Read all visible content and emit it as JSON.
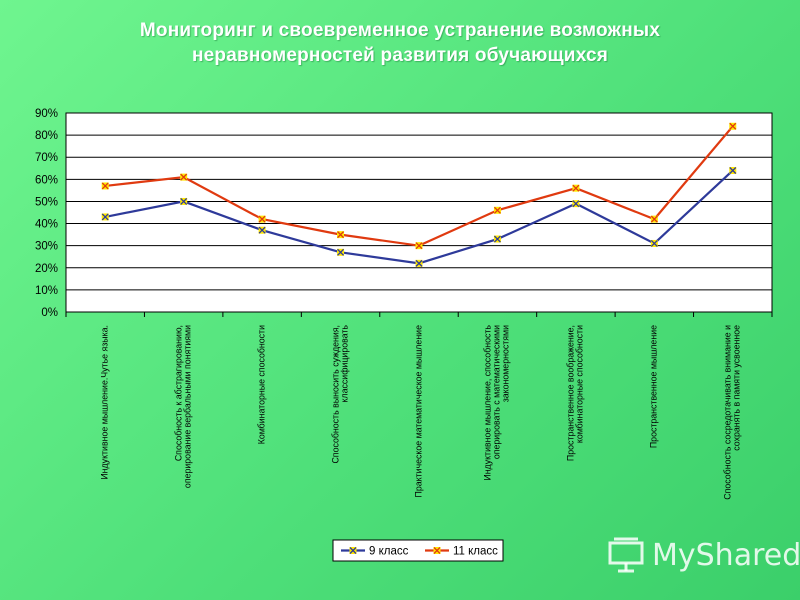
{
  "title": {
    "line1": "Мониторинг и своевременное устранение возможных",
    "line2": "неравномерностей развития обучающихся"
  },
  "chart_data": {
    "type": "line",
    "categories": [
      [
        "Индуктивное мышление.Чутье языка."
      ],
      [
        "Способность к абстрагированию,",
        "оперирование вербальными понятиями"
      ],
      [
        "Комбинаторные способности"
      ],
      [
        "Способность выносить суждения,",
        "классифицировать"
      ],
      [
        "Практическое математическое мышление"
      ],
      [
        "Индуктивное мышление, способность",
        "оперировать с математическими",
        "закономерностями"
      ],
      [
        "Пространственное воображение,",
        "комбинаторные способности"
      ],
      [
        "Пространственное мышление"
      ],
      [
        "Способность сосредотачивать внимание и",
        "сохранять в памяти усвоенное"
      ]
    ],
    "series": [
      {
        "name": "9 класс",
        "color": "#2e3a9a",
        "values": [
          43,
          50,
          37,
          27,
          22,
          33,
          49,
          31,
          64
        ]
      },
      {
        "name": "11 класс",
        "color": "#e03a10",
        "values": [
          57,
          61,
          42,
          35,
          30,
          46,
          56,
          42,
          84
        ]
      }
    ],
    "ylim": [
      0,
      90
    ],
    "yticks": [
      "0%",
      "10%",
      "20%",
      "30%",
      "40%",
      "50%",
      "60%",
      "70%",
      "80%",
      "90%"
    ],
    "marker_color": "#ffe800",
    "grid": true,
    "legend_position": "bottom"
  },
  "watermark": {
    "text": "MyShared"
  }
}
